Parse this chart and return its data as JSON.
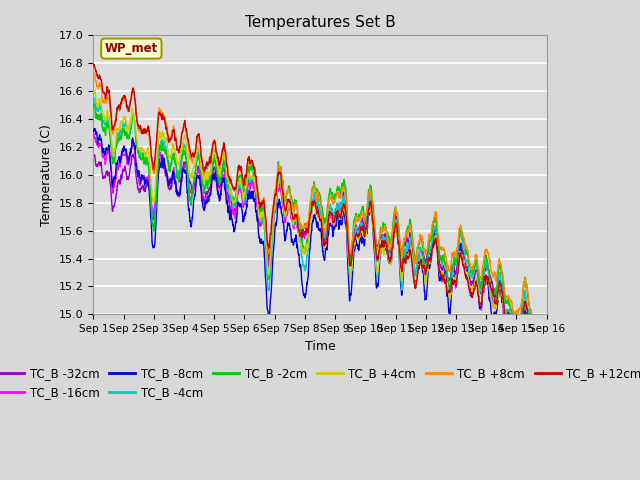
{
  "title": "Temperatures Set B",
  "xlabel": "Time",
  "ylabel": "Temperature (C)",
  "ylim": [
    15.0,
    17.0
  ],
  "yticks": [
    15.0,
    15.2,
    15.4,
    15.6,
    15.8,
    16.0,
    16.2,
    16.4,
    16.6,
    16.8,
    17.0
  ],
  "xtick_labels": [
    "Sep 1",
    "Sep 2",
    "Sep 3",
    "Sep 4",
    "Sep 5",
    "Sep 6",
    "Sep 7",
    "Sep 8",
    "Sep 9",
    "Sep 10",
    "Sep 11",
    "Sep 12",
    "Sep 13",
    "Sep 14",
    "Sep 15",
    "Sep 16"
  ],
  "series": [
    {
      "label": "TC_B -32cm",
      "color": "#9900cc"
    },
    {
      "label": "TC_B -16cm",
      "color": "#ff00ff"
    },
    {
      "label": "TC_B -8cm",
      "color": "#0000dd"
    },
    {
      "label": "TC_B -4cm",
      "color": "#00cccc"
    },
    {
      "label": "TC_B -2cm",
      "color": "#00cc00"
    },
    {
      "label": "TC_B +4cm",
      "color": "#cccc00"
    },
    {
      "label": "TC_B +8cm",
      "color": "#ff8800"
    },
    {
      "label": "TC_B +12cm",
      "color": "#cc0000"
    }
  ],
  "annotation_text": "WP_met",
  "bg_color": "#dcdcdc",
  "grid_color": "#ffffff",
  "n_points": 2000,
  "legend_fontsize": 8.5,
  "title_fontsize": 11
}
